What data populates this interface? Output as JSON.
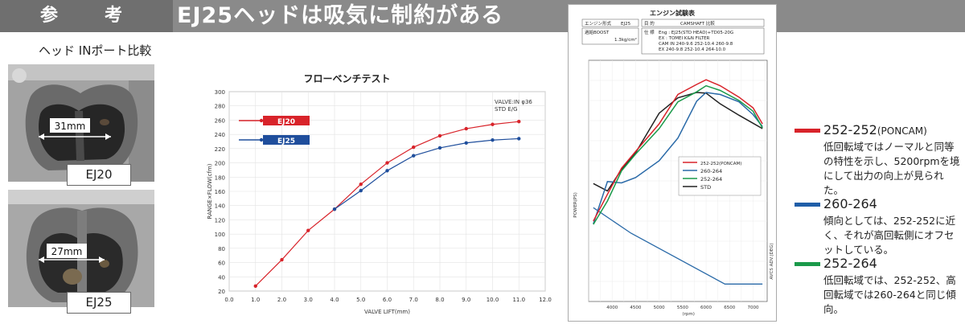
{
  "banner": {
    "tag_chars": [
      "参",
      "考"
    ],
    "headline": "EJ25ヘッドは吸気に制約がある"
  },
  "ports": {
    "title": "ヘッド INポート比較",
    "photos": [
      {
        "width_label": "31mm",
        "name": "EJ20"
      },
      {
        "width_label": "27mm",
        "name": "EJ25"
      }
    ]
  },
  "chart_data": [
    {
      "type": "line",
      "title": "フローベンチテスト",
      "annotation": [
        "VALVE:IN φ36",
        "STD E/G"
      ],
      "xlabel": "VALVE LIFT(mm)",
      "ylabel": "RANGE×FLOW(cfm)",
      "xlim": [
        0,
        12
      ],
      "ylim": [
        20,
        300
      ],
      "xticks": [
        "0.0",
        "1.0",
        "2.0",
        "3.0",
        "4.0",
        "5.0",
        "6.0",
        "7.0",
        "8.0",
        "9.0",
        "10.0",
        "11.0",
        "12.0"
      ],
      "yticks": [
        "20",
        "40",
        "60",
        "80",
        "100",
        "120",
        "140",
        "160",
        "180",
        "200",
        "220",
        "240",
        "260",
        "280",
        "300"
      ],
      "grid": true,
      "legend_position": "top-left",
      "series": [
        {
          "name": "EJ20",
          "color": "#d8232a",
          "x": [
            1,
            2,
            3,
            4,
            5,
            6,
            7,
            8,
            9,
            10,
            11
          ],
          "y": [
            27,
            64,
            105,
            135,
            170,
            200,
            222,
            238,
            248,
            254,
            258
          ]
        },
        {
          "name": "EJ25",
          "color": "#1f4e9c",
          "x": [
            4,
            5,
            6,
            7,
            8,
            9,
            10,
            11
          ],
          "y": [
            135,
            161,
            189,
            210,
            221,
            228,
            232,
            234
          ]
        }
      ]
    },
    {
      "type": "line",
      "title": "エンジン試験表",
      "header": {
        "r1": [
          "エンジン形式",
          "EJ25",
          "目 的",
          "CAMSHAFT 比較"
        ],
        "boost_label": "過給BOOST",
        "boost_value": "1.3kg/cm²",
        "spec_label": "仕 様",
        "spec_lines": [
          "Eng : EJ25(STD HEAD)+TD05-20G",
          "EX : TOMEI K&N FILTER",
          "CAM IN 240-9.6 252-10.4 260-9.8",
          "EX 240-9.8 252-10.4 264-10.0"
        ]
      },
      "xlabel": "(rpm)",
      "ylabel": "POWER(PS)",
      "y2label": "AVCS ADV.(DEG)",
      "xlim": [
        3500,
        7300
      ],
      "xticks": [
        "4000",
        "4500",
        "5000",
        "5500",
        "6000",
        "6500",
        "7000"
      ],
      "grid": true,
      "legend_position": "center",
      "series": [
        {
          "name": "252-252(PONCAM)",
          "color": "#d8232a",
          "x": [
            3600,
            3900,
            4200,
            4500,
            5000,
            5400,
            5800,
            6000,
            6300,
            6700,
            7000,
            7200
          ],
          "y": [
            120,
            160,
            199,
            224,
            265,
            309,
            324,
            331,
            322,
            305,
            289,
            265
          ]
        },
        {
          "name": "260-264",
          "color": "#2a6aa8",
          "x": [
            3600,
            3900,
            4200,
            4500,
            5000,
            5400,
            5800,
            6000,
            6300,
            6700,
            7000,
            7200
          ],
          "y": [
            116,
            179,
            177,
            185,
            210,
            244,
            299,
            312,
            309,
            298,
            279,
            261
          ]
        },
        {
          "name": "252-264",
          "color": "#1a9a4a",
          "x": [
            3600,
            3900,
            4200,
            4500,
            5000,
            5400,
            5800,
            6000,
            6300,
            6700,
            7000,
            7200
          ],
          "y": [
            115,
            150,
            195,
            220,
            258,
            298,
            313,
            322,
            315,
            300,
            284,
            259
          ]
        },
        {
          "name": "STD",
          "color": "#222222",
          "x": [
            3600,
            3900,
            4200,
            4500,
            5000,
            5400,
            5800,
            6000,
            6300,
            6700,
            7000,
            7200
          ],
          "y": [
            176,
            165,
            197,
            222,
            281,
            304,
            312,
            311,
            295,
            278,
            266,
            258
          ]
        }
      ],
      "avcs_series": {
        "color": "#2a6aa8",
        "x": [
          3600,
          4400,
          6400,
          6800,
          7200
        ],
        "y": [
          140,
          102,
          26,
          26,
          26
        ]
      },
      "y_range": [
        0,
        360
      ]
    }
  ],
  "legend_right": [
    {
      "name": "252-252",
      "suffix": "(PONCAM)",
      "color": "#d8232a",
      "desc": "低回転域ではノーマルと同等の特性を示し、5200rpmを境にして出力の向上が見られた。"
    },
    {
      "name": "260-264",
      "suffix": "",
      "color": "#1f5ea8",
      "desc": "傾向としては、252-252に近く、それが高回転側にオフセットしている。"
    },
    {
      "name": "252-264",
      "suffix": "",
      "color": "#1a9a4a",
      "desc": "低回転域では、252-252、高回転域では260-264と同じ傾向。"
    }
  ]
}
